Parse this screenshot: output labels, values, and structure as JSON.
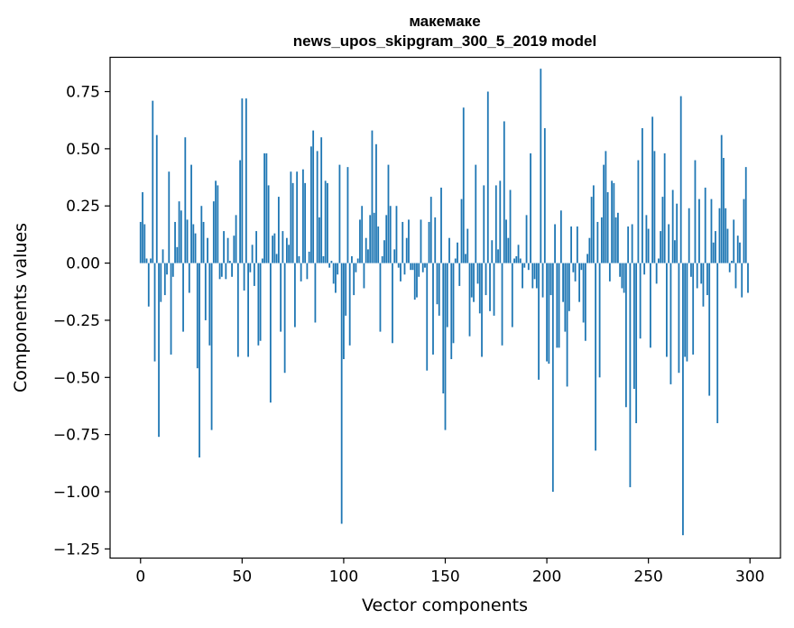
{
  "chart_data": {
    "type": "bar",
    "title_line1": "макемаке",
    "title_line2": "news_upos_skipgram_300_5_2019 model",
    "xlabel": "Vector components",
    "ylabel": "Components values",
    "xlim": [
      -15,
      315
    ],
    "ylim": [
      -1.29,
      0.9
    ],
    "x_ticks": [
      0,
      50,
      100,
      150,
      200,
      250,
      300
    ],
    "x_tick_labels": [
      "0",
      "50",
      "100",
      "150",
      "200",
      "250",
      "300"
    ],
    "y_ticks": [
      0.75,
      0.5,
      0.25,
      0.0,
      -0.25,
      -0.5,
      -0.75,
      -1.0,
      -1.25
    ],
    "y_tick_labels": [
      "0.75",
      "0.50",
      "0.25",
      "0.00",
      "−0.25",
      "−0.50",
      "−0.75",
      "−1.00",
      "−1.25"
    ],
    "bar_color": "#1f77b4",
    "values": [
      0.18,
      0.31,
      0.17,
      0.02,
      -0.19,
      0.02,
      0.71,
      -0.43,
      0.56,
      -0.76,
      -0.17,
      0.06,
      -0.14,
      -0.05,
      0.4,
      -0.4,
      -0.06,
      0.18,
      0.07,
      0.27,
      0.23,
      -0.3,
      0.55,
      0.19,
      -0.13,
      0.43,
      0.17,
      0.13,
      -0.46,
      -0.85,
      0.25,
      0.18,
      -0.25,
      0.11,
      -0.36,
      -0.73,
      0.27,
      0.36,
      0.34,
      -0.07,
      -0.06,
      0.14,
      -0.07,
      0.11,
      0.01,
      -0.06,
      0.12,
      0.21,
      -0.41,
      0.45,
      0.72,
      -0.12,
      0.72,
      -0.41,
      -0.04,
      0.08,
      -0.1,
      0.14,
      -0.36,
      -0.34,
      0.02,
      0.48,
      0.48,
      0.34,
      -0.61,
      0.12,
      0.13,
      0.04,
      0.29,
      -0.3,
      0.14,
      -0.48,
      0.11,
      0.08,
      0.4,
      0.35,
      -0.28,
      0.4,
      0.03,
      -0.08,
      0.41,
      0.35,
      -0.07,
      0.05,
      0.51,
      0.58,
      -0.26,
      0.49,
      0.2,
      0.55,
      0.03,
      0.36,
      0.35,
      -0.02,
      0.01,
      -0.09,
      -0.13,
      -0.05,
      0.43,
      -1.14,
      -0.42,
      -0.23,
      0.42,
      -0.36,
      0.03,
      -0.14,
      -0.04,
      0.02,
      0.19,
      0.25,
      -0.11,
      0.11,
      0.06,
      0.21,
      0.58,
      0.22,
      0.52,
      0.16,
      -0.3,
      0.03,
      0.1,
      0.21,
      0.43,
      0.25,
      -0.35,
      0.06,
      0.25,
      -0.02,
      -0.08,
      0.18,
      -0.05,
      0.11,
      0.19,
      -0.03,
      -0.03,
      -0.16,
      -0.15,
      -0.06,
      0.19,
      -0.04,
      -0.02,
      -0.47,
      0.18,
      0.29,
      -0.4,
      0.2,
      -0.18,
      -0.23,
      0.33,
      -0.57,
      -0.73,
      -0.28,
      0.11,
      -0.42,
      -0.35,
      0.02,
      0.09,
      -0.1,
      0.28,
      0.68,
      0.04,
      0.15,
      -0.32,
      -0.15,
      -0.17,
      0.43,
      -0.09,
      -0.22,
      -0.41,
      0.34,
      -0.14,
      0.75,
      -0.21,
      0.1,
      -0.23,
      0.34,
      0.06,
      0.36,
      -0.36,
      0.62,
      0.19,
      0.11,
      0.32,
      -0.28,
      0.02,
      0.03,
      0.08,
      0.02,
      -0.11,
      -0.02,
      0.21,
      -0.03,
      0.48,
      -0.11,
      -0.07,
      -0.11,
      -0.51,
      0.85,
      -0.15,
      0.59,
      -0.43,
      -0.44,
      -0.14,
      -1.0,
      0.17,
      -0.37,
      -0.37,
      0.23,
      -0.17,
      -0.3,
      -0.54,
      -0.21,
      0.16,
      -0.04,
      -0.08,
      0.16,
      -0.17,
      -0.03,
      -0.26,
      -0.34,
      0.04,
      0.11,
      0.29,
      0.34,
      -0.82,
      0.18,
      -0.5,
      0.2,
      0.43,
      0.49,
      0.31,
      -0.08,
      0.36,
      0.35,
      0.2,
      0.22,
      -0.06,
      -0.11,
      -0.13,
      -0.63,
      0.16,
      -0.98,
      0.17,
      -0.55,
      -0.7,
      0.45,
      -0.33,
      0.59,
      -0.05,
      0.21,
      0.15,
      -0.37,
      0.64,
      0.49,
      -0.09,
      0.02,
      0.14,
      0.29,
      0.48,
      -0.41,
      0.17,
      -0.53,
      0.32,
      0.1,
      0.26,
      -0.48,
      0.73,
      -1.19,
      -0.41,
      -0.43,
      0.24,
      -0.06,
      -0.4,
      0.45,
      -0.11,
      0.28,
      -0.09,
      -0.19,
      0.33,
      -0.14,
      -0.58,
      0.28,
      0.09,
      0.14,
      -0.7,
      0.24,
      0.56,
      0.46,
      0.24,
      0.15,
      -0.04,
      0.01,
      0.19,
      -0.11,
      0.12,
      0.09,
      -0.15,
      0.28,
      0.42,
      -0.13
    ]
  }
}
